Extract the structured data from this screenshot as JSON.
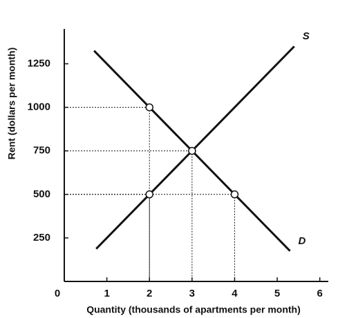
{
  "chart_data": {
    "type": "line",
    "xlabel": "Quantity (thousands of apartments per month)",
    "ylabel": "Rent (dollars per month)",
    "series": [
      {
        "name": "S",
        "color": "#111111",
        "x": [
          0.75,
          5.4
        ],
        "values": [
          187.5,
          1350
        ]
      },
      {
        "name": "D",
        "color": "#111111",
        "x": [
          0.7,
          5.3
        ],
        "values": [
          1325,
          175
        ]
      }
    ],
    "points": {
      "x": [
        2,
        3,
        2,
        4
      ],
      "values": [
        1000,
        750,
        500,
        500
      ]
    },
    "xlim": [
      0,
      6.2
    ],
    "xticks": [
      0,
      1,
      2,
      3,
      4,
      5,
      6
    ],
    "ylim": [
      0,
      1450
    ],
    "yticks": [
      250,
      500,
      750,
      1000,
      1250
    ]
  }
}
